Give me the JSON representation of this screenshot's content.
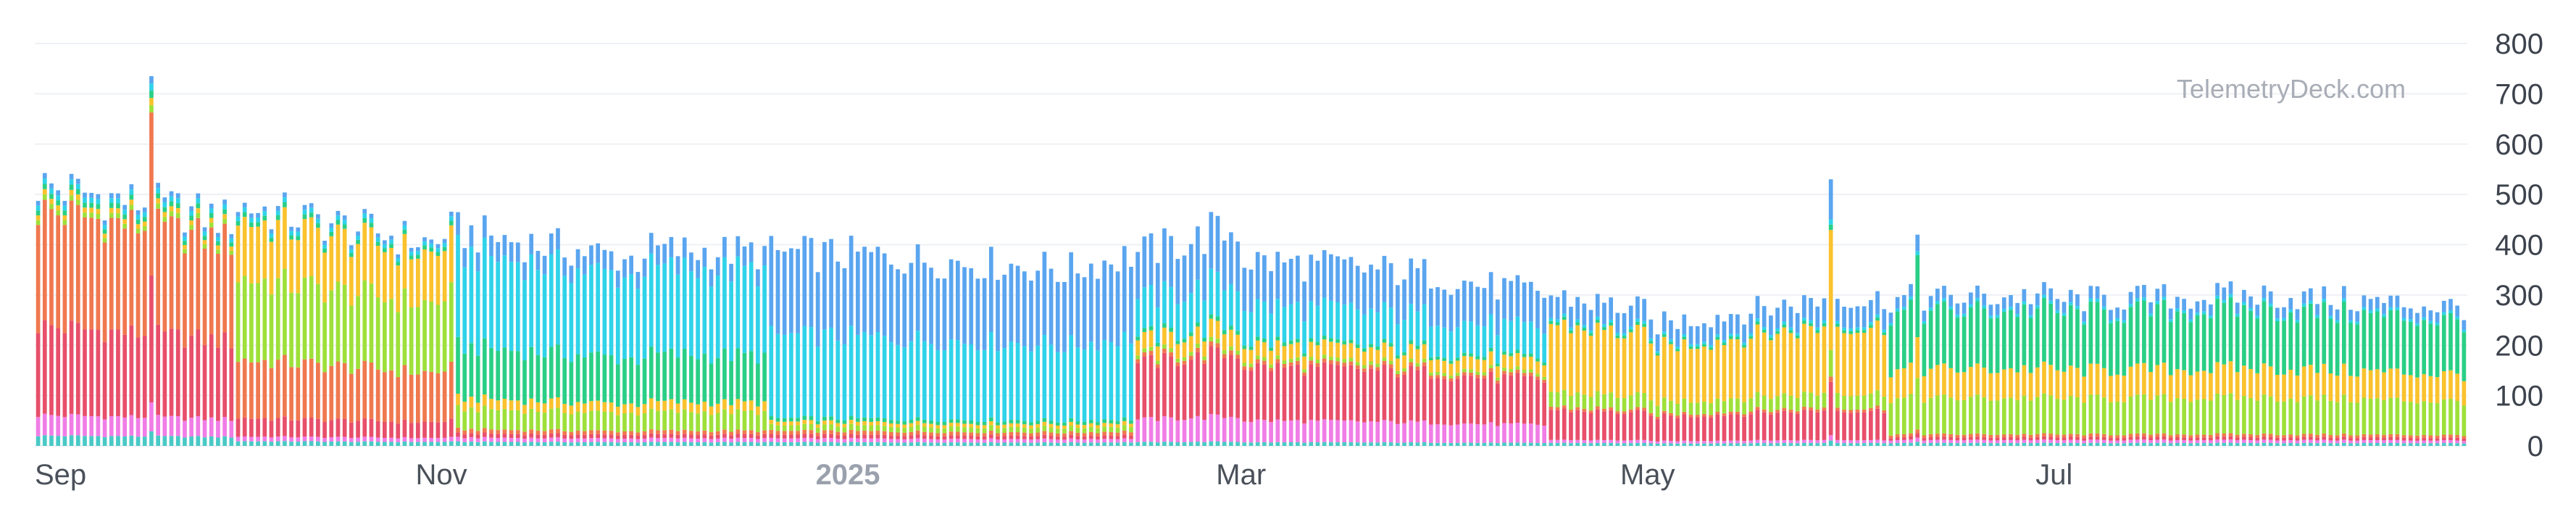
{
  "watermark": "TelemetryDeck.com",
  "chart_data": {
    "type": "bar",
    "stacked": true,
    "interval": "day",
    "x_start": "2024-09-01",
    "x_end": "2025-08-31",
    "ylim": [
      0,
      800
    ],
    "yticks": [
      0,
      100,
      200,
      300,
      400,
      500,
      600,
      700,
      800
    ],
    "grid": true,
    "x_tick_labels": [
      {
        "date": "2024-09-01",
        "label": "Sep",
        "style": "normal"
      },
      {
        "date": "2024-11-01",
        "label": "Nov",
        "style": "normal"
      },
      {
        "date": "2025-01-01",
        "label": "2025",
        "style": "year"
      },
      {
        "date": "2025-03-01",
        "label": "Mar",
        "style": "normal"
      },
      {
        "date": "2025-05-01",
        "label": "May",
        "style": "normal"
      },
      {
        "date": "2025-07-01",
        "label": "Jul",
        "style": "normal"
      }
    ],
    "series_colors": [
      "#49c9c6",
      "#f07de6",
      "#e84f6a",
      "#f0784f",
      "#9ee039",
      "#fac22d",
      "#29cf86",
      "#2fd3e9",
      "#5aa5ef"
    ],
    "totals_monthly_approx": [
      {
        "month": "2024-09",
        "total_start": 520,
        "total_end": 450,
        "peak": {
          "date": "2024-09-18",
          "value": 735
        }
      },
      {
        "month": "2024-10",
        "total_start": 480,
        "total_end": 400
      },
      {
        "month": "2024-11",
        "total_start": 430,
        "total_end": 370
      },
      {
        "month": "2024-12",
        "total_start": 390,
        "total_end": 380
      },
      {
        "month": "2025-01",
        "total_start": 380,
        "total_end": 355
      },
      {
        "month": "2025-02",
        "total_start": 345,
        "total_end": 430,
        "peak": {
          "date": "2025-02-24",
          "value": 465
        }
      },
      {
        "month": "2025-03",
        "total_start": 370,
        "total_end": 340
      },
      {
        "month": "2025-04",
        "total_start": 330,
        "total_end": 270
      },
      {
        "month": "2025-05",
        "total_start": 240,
        "total_end": 300,
        "peak": {
          "date": "2025-05-28",
          "value": 530
        }
      },
      {
        "month": "2025-06",
        "total_start": 290,
        "total_end": 300,
        "peak": {
          "date": "2025-06-10",
          "value": 420
        }
      },
      {
        "month": "2025-07",
        "total_start": 290,
        "total_end": 300
      },
      {
        "month": "2025-08",
        "total_start": 300,
        "total_end": 275
      }
    ]
  }
}
